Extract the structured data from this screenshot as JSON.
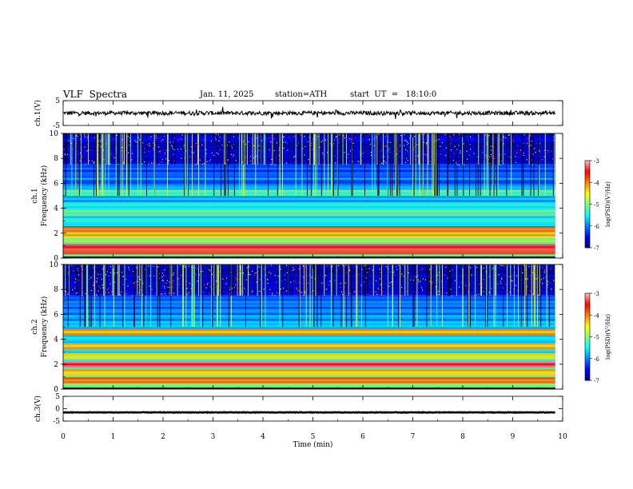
{
  "header": {
    "title": "VLF  Spectra",
    "date": "Jan. 11, 2025",
    "station": "station=ATH",
    "start": "start  UT  =   18:10:0"
  },
  "chart_data": [
    {
      "type": "line",
      "name": "ch1-waveform",
      "ylabel": "ch.1(V)",
      "ylim": [
        -5,
        5
      ],
      "yticks": [
        "5",
        "-5"
      ],
      "xlim": [
        0,
        10
      ],
      "baseline": 0,
      "noise_amplitude": 0.8
    },
    {
      "type": "heatmap",
      "name": "ch1-spectrogram",
      "ylabel_top": "ch.1",
      "ylabel": "Frequency  (kHz)",
      "ylim": [
        0,
        10
      ],
      "yticks": [
        "0",
        "2",
        "4",
        "6",
        "8",
        "10"
      ],
      "xlim": [
        0,
        10
      ],
      "data_end_min": 9.85,
      "bands_khz": [
        {
          "f": 0.5,
          "level": -4.0
        },
        {
          "f": 0.9,
          "level": -3.6
        },
        {
          "f": 1.5,
          "level": -5.0
        },
        {
          "f": 2.1,
          "level": -4.6
        },
        {
          "f": 2.3,
          "level": -4.2
        },
        {
          "f": 3.6,
          "level": -5.3
        },
        {
          "f": 4.1,
          "level": -5.6
        },
        {
          "f": 5.2,
          "level": -5.4
        }
      ],
      "colorbar": {
        "label": "log(PSD)(V²/Hz)",
        "ticks": [
          "-3",
          "-4",
          "-5",
          "-6",
          "-7"
        ],
        "range": [
          -7,
          -3
        ]
      }
    },
    {
      "type": "heatmap",
      "name": "ch2-spectrogram",
      "ylabel_top": "ch.2",
      "ylabel": "Frequency  (kHz)",
      "ylim": [
        0,
        10
      ],
      "yticks": [
        "0",
        "2",
        "4",
        "6",
        "8",
        "10"
      ],
      "xlim": [
        0,
        10
      ],
      "data_end_min": 9.85,
      "bands_khz": [
        {
          "f": 0.7,
          "level": -4.2
        },
        {
          "f": 1.3,
          "level": -4.6
        },
        {
          "f": 2.0,
          "level": -3.5
        },
        {
          "f": 2.6,
          "level": -4.8
        },
        {
          "f": 3.5,
          "level": -4.5
        },
        {
          "f": 4.6,
          "level": -4.4
        }
      ],
      "colorbar": {
        "label": "log(PSD)(V²/Hz)",
        "ticks": [
          "-3",
          "-4",
          "-5",
          "-6",
          "-7"
        ],
        "range": [
          -7,
          -3
        ]
      }
    },
    {
      "type": "line",
      "name": "ch3-waveform",
      "ylabel": "ch.3(V)",
      "ylim": [
        -5,
        5
      ],
      "yticks": [
        "5",
        "0",
        "-5"
      ],
      "xlim": [
        0,
        10
      ],
      "baseline": -1.5,
      "noise_amplitude": 0.1
    }
  ],
  "xaxis": {
    "label": "Time  (min)",
    "ticks": [
      "0",
      "1",
      "2",
      "3",
      "4",
      "5",
      "6",
      "7",
      "8",
      "9",
      "10"
    ]
  }
}
